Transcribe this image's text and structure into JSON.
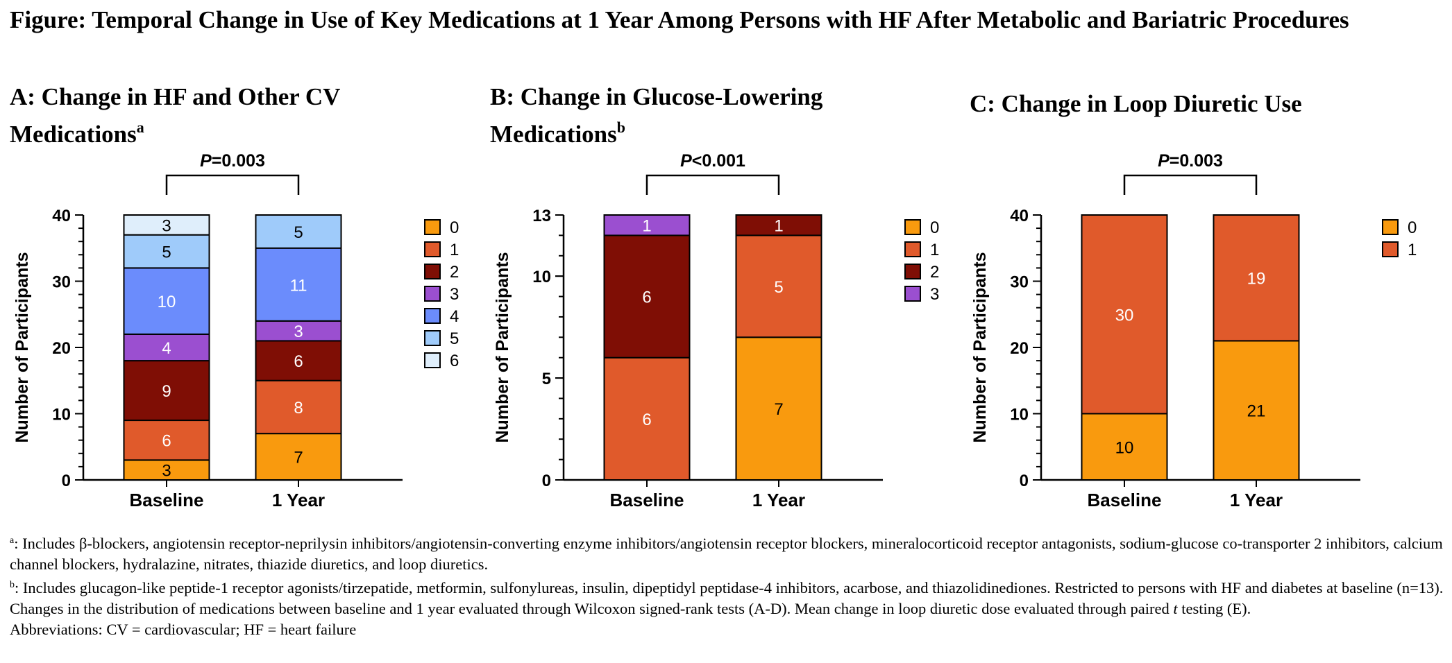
{
  "figure_title": "Figure: Temporal Change in Use of Key Medications at 1 Year Among Persons with HF After Metabolic and Bariatric Procedures",
  "chart_data": [
    {
      "type": "bar",
      "stacked": true,
      "title": "A: Change in HF and Other CV Medications",
      "title_main": "A: Change in HF and Other CV Medications",
      "title_sup": "a",
      "ylabel": "Number of Participants",
      "xlabel": "",
      "ylim": [
        0,
        40
      ],
      "yticks": [
        0,
        10,
        20,
        30,
        40
      ],
      "categories": [
        "Baseline",
        "1 Year"
      ],
      "p_label": "P",
      "p_rest": "=0.003",
      "series": [
        {
          "name": "0",
          "color": "#F99A0E",
          "values": [
            3,
            7
          ],
          "labels": [
            "3",
            "7"
          ]
        },
        {
          "name": "1",
          "color": "#E05A2B",
          "values": [
            6,
            8
          ],
          "labels": [
            "6",
            "8"
          ]
        },
        {
          "name": "2",
          "color": "#7F0E05",
          "values": [
            9,
            6
          ],
          "labels": [
            "9",
            "6"
          ]
        },
        {
          "name": "3",
          "color": "#9B4FD0",
          "values": [
            4,
            3
          ],
          "labels": [
            "4",
            "3"
          ]
        },
        {
          "name": "4",
          "color": "#6B8CFC",
          "values": [
            10,
            11
          ],
          "labels": [
            "10",
            "11"
          ]
        },
        {
          "name": "5",
          "color": "#9FCBFA",
          "values": [
            5,
            5
          ],
          "labels": [
            "5",
            "5"
          ]
        },
        {
          "name": "6",
          "color": "#DFEEFB",
          "values": [
            3,
            0
          ],
          "labels": [
            "3",
            ""
          ]
        }
      ]
    },
    {
      "type": "bar",
      "stacked": true,
      "title": "B: Change in Glucose-Lowering Medications",
      "title_main": "B: Change in Glucose-Lowering Medications",
      "title_sup": "b",
      "ylabel": "Number of Participants",
      "xlabel": "",
      "ylim": [
        0,
        13
      ],
      "yticks": [
        0,
        5,
        10,
        13
      ],
      "categories": [
        "Baseline",
        "1 Year"
      ],
      "p_label": "P",
      "p_rest": "<0.001",
      "series": [
        {
          "name": "0",
          "color": "#F99A0E",
          "values": [
            0,
            7
          ],
          "labels": [
            "",
            "7"
          ]
        },
        {
          "name": "1",
          "color": "#E05A2B",
          "values": [
            6,
            5
          ],
          "labels": [
            "6",
            "5"
          ]
        },
        {
          "name": "2",
          "color": "#7F0E05",
          "values": [
            6,
            1
          ],
          "labels": [
            "6",
            "1"
          ]
        },
        {
          "name": "3",
          "color": "#9B4FD0",
          "values": [
            1,
            0
          ],
          "labels": [
            "1",
            ""
          ]
        }
      ]
    },
    {
      "type": "bar",
      "stacked": true,
      "title": "C: Change in Loop Diuretic Use",
      "title_main": "C: Change in Loop Diuretic Use",
      "title_sup": "",
      "ylabel": "Number of Participants",
      "xlabel": "",
      "ylim": [
        0,
        40
      ],
      "yticks": [
        0,
        10,
        20,
        30,
        40
      ],
      "categories": [
        "Baseline",
        "1 Year"
      ],
      "p_label": "P",
      "p_rest": "=0.003",
      "series": [
        {
          "name": "0",
          "color": "#F99A0E",
          "values": [
            10,
            21
          ],
          "labels": [
            "10",
            "21"
          ]
        },
        {
          "name": "1",
          "color": "#E05A2B",
          "values": [
            30,
            19
          ],
          "labels": [
            "30",
            "19"
          ]
        }
      ]
    }
  ],
  "footnotes": {
    "a_mark": "a",
    "a_text": ": Includes β-blockers, angiotensin receptor-neprilysin inhibitors/angiotensin-converting enzyme inhibitors/angiotensin receptor blockers, mineralocorticoid receptor antagonists, sodium-glucose co-transporter 2 inhibitors, calcium channel blockers, hydralazine, nitrates, thiazide diuretics, and loop diuretics.",
    "b_mark": "b",
    "b_text": ": Includes glucagon-like peptide-1 receptor agonists/tirzepatide, metformin, sulfonylureas, insulin, dipeptidyl peptidase-4 inhibitors, acarbose, and thiazolidinediones. Restricted to persons with HF and diabetes at baseline (n=13).",
    "changes_before": "Changes in the distribution of medications between baseline and 1 year evaluated through Wilcoxon signed-rank tests (A-D). Mean change in loop diuretic dose evaluated through paired ",
    "changes_t": "t",
    "changes_after": " testing (E).",
    "abbreviations": "Abbreviations: CV = cardiovascular; HF = heart failure"
  }
}
